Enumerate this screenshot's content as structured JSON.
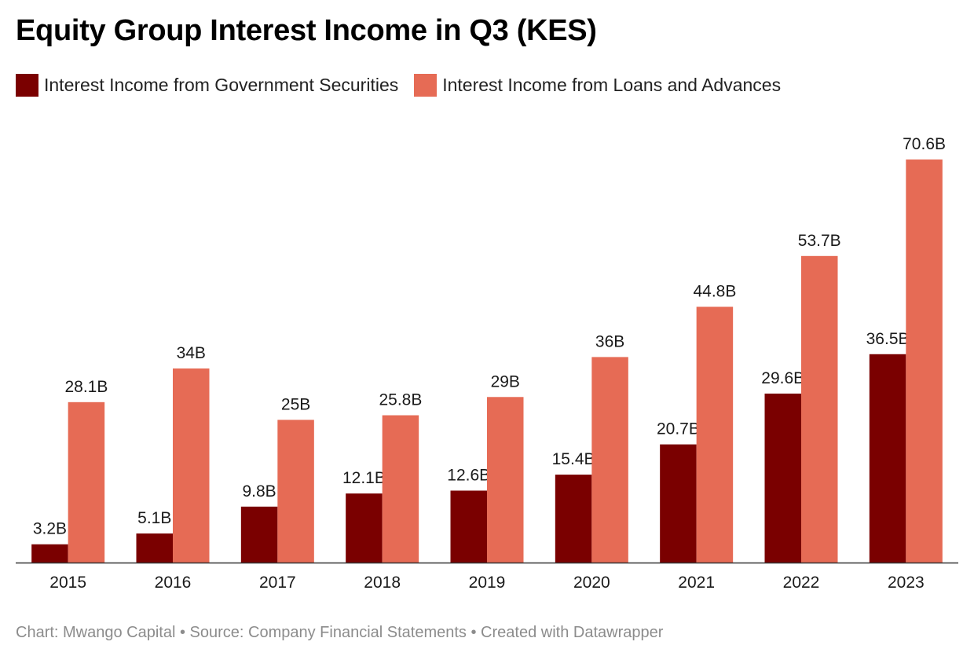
{
  "chart_data": {
    "type": "bar",
    "title": "Equity Group Interest Income in Q3 (KES)",
    "categories": [
      "2015",
      "2016",
      "2017",
      "2018",
      "2019",
      "2020",
      "2021",
      "2022",
      "2023"
    ],
    "series": [
      {
        "name": "Interest Income from Government Securities",
        "color": "#7a0000",
        "values": [
          3.2,
          5.1,
          9.8,
          12.1,
          12.6,
          15.4,
          20.7,
          29.6,
          36.5
        ],
        "labels": [
          "3.2B",
          "5.1B",
          "9.8B",
          "12.1B",
          "12.6B",
          "15.4B",
          "20.7B",
          "29.6B",
          "36.5B"
        ]
      },
      {
        "name": "Interest Income from Loans and Advances",
        "color": "#e66b55",
        "values": [
          28.1,
          34,
          25,
          25.8,
          29,
          36,
          44.8,
          53.7,
          70.6
        ],
        "labels": [
          "28.1B",
          "34B",
          "25B",
          "25.8B",
          "29B",
          "36B",
          "44.8B",
          "53.7B",
          "70.6B"
        ]
      }
    ],
    "ylim": [
      0,
      70.6
    ],
    "grid": false,
    "legend_position": "top-left"
  },
  "footer": "Chart: Mwango Capital • Source: Company Financial Statements • Created with Datawrapper"
}
